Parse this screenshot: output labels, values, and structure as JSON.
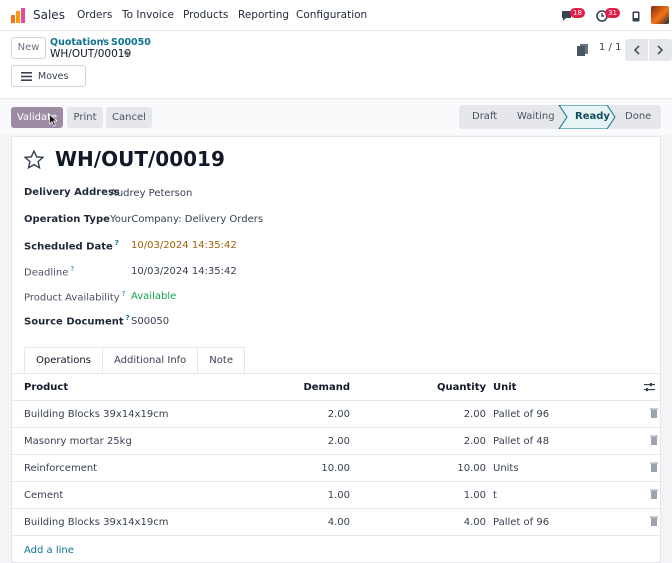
{
  "topnav": {
    "app_name": "Sales",
    "menu": [
      "Orders",
      "To Invoice",
      "Products",
      "Reporting",
      "Configuration"
    ],
    "messages_count": "18",
    "activities_count": "31"
  },
  "control": {
    "new_label": "New",
    "breadcrumb_parent": "Quotations",
    "breadcrumb_sep": "/",
    "breadcrumb_current": "S00050",
    "record_name": "WH/OUT/00019",
    "moves_label": "Moves",
    "pager": "1 / 1"
  },
  "status": {
    "validate_label": "Validate",
    "print_label": "Print",
    "cancel_label": "Cancel",
    "stages": [
      "Draft",
      "Waiting",
      "Ready",
      "Done"
    ],
    "active_stage": "Ready"
  },
  "form": {
    "title": "WH/OUT/00019",
    "fields": [
      {
        "label": "Delivery Address",
        "value": "Audrey Peterson"
      },
      {
        "label": "Operation Type",
        "value": "YourCompany: Delivery Orders"
      },
      {
        "label": "Scheduled Date",
        "help": "?",
        "value": "10/03/2024 14:35:42"
      },
      {
        "label": "Deadline",
        "help": "?",
        "value": "10/03/2024 14:35:42"
      },
      {
        "label": "Product Availability",
        "help": "?",
        "value": "Available"
      },
      {
        "label": "Source Document",
        "help": "?",
        "value": "S00050"
      }
    ],
    "colors": {
      "scheduled": "#a16207",
      "available": "#16a34a",
      "accent": "#0e7490"
    }
  },
  "tabs": [
    "Operations",
    "Additional Info",
    "Note"
  ],
  "table": {
    "headers": {
      "product": "Product",
      "demand": "Demand",
      "quantity": "Quantity",
      "unit": "Unit"
    },
    "rows": [
      {
        "product": "Building Blocks 39x14x19cm",
        "demand": "2.00",
        "quantity": "2.00",
        "unit": "Pallet of 96"
      },
      {
        "product": "Masonry mortar 25kg",
        "demand": "2.00",
        "quantity": "2.00",
        "unit": "Pallet of 48"
      },
      {
        "product": "Reinforcement",
        "demand": "10.00",
        "quantity": "10.00",
        "unit": "Units"
      },
      {
        "product": "Cement",
        "demand": "1.00",
        "quantity": "1.00",
        "unit": "t"
      },
      {
        "product": "Building Blocks 39x14x19cm",
        "demand": "4.00",
        "quantity": "4.00",
        "unit": "Pallet of 96"
      }
    ],
    "add_line": "Add a line"
  }
}
